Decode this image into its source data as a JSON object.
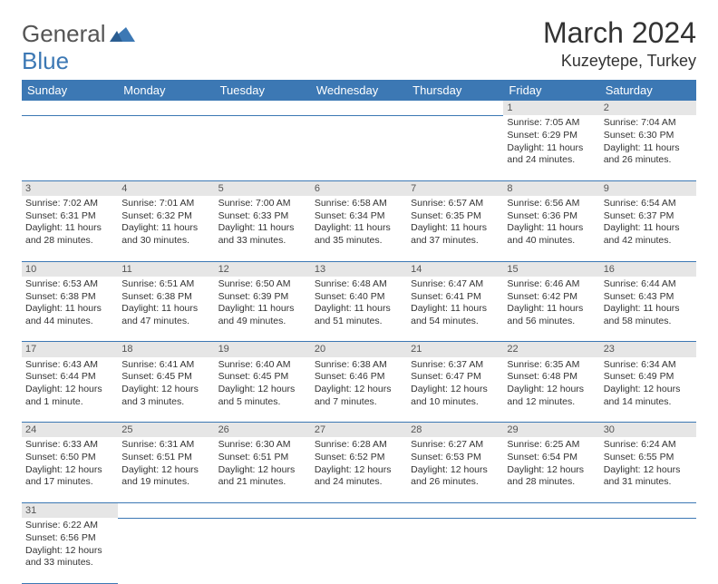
{
  "logo": {
    "part1": "General",
    "part2": "Blue",
    "flag_color": "#3c78b4"
  },
  "title": "March 2024",
  "location": "Kuzeytepe, Turkey",
  "colors": {
    "header_bg": "#3c78b4",
    "header_text": "#ffffff",
    "daynum_bg": "#e6e6e6",
    "body_text": "#333333",
    "rule": "#3c78b4"
  },
  "weekdays": [
    "Sunday",
    "Monday",
    "Tuesday",
    "Wednesday",
    "Thursday",
    "Friday",
    "Saturday"
  ],
  "first_weekday_index": 5,
  "days": [
    {
      "n": 1,
      "sr": "7:05 AM",
      "ss": "6:29 PM",
      "dl": "11 hours and 24 minutes."
    },
    {
      "n": 2,
      "sr": "7:04 AM",
      "ss": "6:30 PM",
      "dl": "11 hours and 26 minutes."
    },
    {
      "n": 3,
      "sr": "7:02 AM",
      "ss": "6:31 PM",
      "dl": "11 hours and 28 minutes."
    },
    {
      "n": 4,
      "sr": "7:01 AM",
      "ss": "6:32 PM",
      "dl": "11 hours and 30 minutes."
    },
    {
      "n": 5,
      "sr": "7:00 AM",
      "ss": "6:33 PM",
      "dl": "11 hours and 33 minutes."
    },
    {
      "n": 6,
      "sr": "6:58 AM",
      "ss": "6:34 PM",
      "dl": "11 hours and 35 minutes."
    },
    {
      "n": 7,
      "sr": "6:57 AM",
      "ss": "6:35 PM",
      "dl": "11 hours and 37 minutes."
    },
    {
      "n": 8,
      "sr": "6:56 AM",
      "ss": "6:36 PM",
      "dl": "11 hours and 40 minutes."
    },
    {
      "n": 9,
      "sr": "6:54 AM",
      "ss": "6:37 PM",
      "dl": "11 hours and 42 minutes."
    },
    {
      "n": 10,
      "sr": "6:53 AM",
      "ss": "6:38 PM",
      "dl": "11 hours and 44 minutes."
    },
    {
      "n": 11,
      "sr": "6:51 AM",
      "ss": "6:38 PM",
      "dl": "11 hours and 47 minutes."
    },
    {
      "n": 12,
      "sr": "6:50 AM",
      "ss": "6:39 PM",
      "dl": "11 hours and 49 minutes."
    },
    {
      "n": 13,
      "sr": "6:48 AM",
      "ss": "6:40 PM",
      "dl": "11 hours and 51 minutes."
    },
    {
      "n": 14,
      "sr": "6:47 AM",
      "ss": "6:41 PM",
      "dl": "11 hours and 54 minutes."
    },
    {
      "n": 15,
      "sr": "6:46 AM",
      "ss": "6:42 PM",
      "dl": "11 hours and 56 minutes."
    },
    {
      "n": 16,
      "sr": "6:44 AM",
      "ss": "6:43 PM",
      "dl": "11 hours and 58 minutes."
    },
    {
      "n": 17,
      "sr": "6:43 AM",
      "ss": "6:44 PM",
      "dl": "12 hours and 1 minute."
    },
    {
      "n": 18,
      "sr": "6:41 AM",
      "ss": "6:45 PM",
      "dl": "12 hours and 3 minutes."
    },
    {
      "n": 19,
      "sr": "6:40 AM",
      "ss": "6:45 PM",
      "dl": "12 hours and 5 minutes."
    },
    {
      "n": 20,
      "sr": "6:38 AM",
      "ss": "6:46 PM",
      "dl": "12 hours and 7 minutes."
    },
    {
      "n": 21,
      "sr": "6:37 AM",
      "ss": "6:47 PM",
      "dl": "12 hours and 10 minutes."
    },
    {
      "n": 22,
      "sr": "6:35 AM",
      "ss": "6:48 PM",
      "dl": "12 hours and 12 minutes."
    },
    {
      "n": 23,
      "sr": "6:34 AM",
      "ss": "6:49 PM",
      "dl": "12 hours and 14 minutes."
    },
    {
      "n": 24,
      "sr": "6:33 AM",
      "ss": "6:50 PM",
      "dl": "12 hours and 17 minutes."
    },
    {
      "n": 25,
      "sr": "6:31 AM",
      "ss": "6:51 PM",
      "dl": "12 hours and 19 minutes."
    },
    {
      "n": 26,
      "sr": "6:30 AM",
      "ss": "6:51 PM",
      "dl": "12 hours and 21 minutes."
    },
    {
      "n": 27,
      "sr": "6:28 AM",
      "ss": "6:52 PM",
      "dl": "12 hours and 24 minutes."
    },
    {
      "n": 28,
      "sr": "6:27 AM",
      "ss": "6:53 PM",
      "dl": "12 hours and 26 minutes."
    },
    {
      "n": 29,
      "sr": "6:25 AM",
      "ss": "6:54 PM",
      "dl": "12 hours and 28 minutes."
    },
    {
      "n": 30,
      "sr": "6:24 AM",
      "ss": "6:55 PM",
      "dl": "12 hours and 31 minutes."
    },
    {
      "n": 31,
      "sr": "6:22 AM",
      "ss": "6:56 PM",
      "dl": "12 hours and 33 minutes."
    }
  ],
  "labels": {
    "sunrise": "Sunrise:",
    "sunset": "Sunset:",
    "daylight": "Daylight:"
  }
}
